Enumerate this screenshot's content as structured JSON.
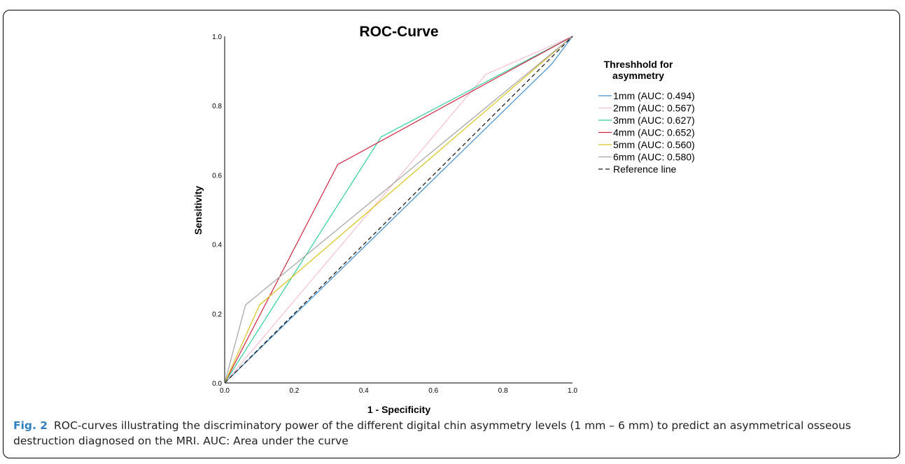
{
  "chart_data": {
    "type": "line",
    "title": "ROC-Curve",
    "xlabel": "1 - Specificity",
    "ylabel": "Sensitivity",
    "xlim": [
      0.0,
      1.0
    ],
    "ylim": [
      0.0,
      1.0
    ],
    "xticks": [
      "0.0",
      "0.2",
      "0.4",
      "0.6",
      "0.8",
      "1.0"
    ],
    "yticks": [
      "0.0",
      "0.2",
      "0.4",
      "0.6",
      "0.8",
      "1.0"
    ],
    "grid": false,
    "legend": {
      "title_line1": "Threshhold for",
      "title_line2": "asymmetry",
      "position": "right"
    },
    "series": [
      {
        "name": "1mm (AUC: 0.494)",
        "color": "#3f8fd0",
        "dash": false,
        "x": [
          0.0,
          0.94,
          1.0
        ],
        "y": [
          0.0,
          0.92,
          1.0
        ]
      },
      {
        "name": "2mm (AUC: 0.567)",
        "color": "#f6bfd2",
        "dash": false,
        "x": [
          0.0,
          0.75,
          1.0
        ],
        "y": [
          0.0,
          0.89,
          1.0
        ]
      },
      {
        "name": "3mm (AUC: 0.627)",
        "color": "#2fcf9e",
        "dash": false,
        "x": [
          0.0,
          0.45,
          1.0
        ],
        "y": [
          0.0,
          0.71,
          1.0
        ]
      },
      {
        "name": "4mm (AUC: 0.652)",
        "color": "#d1263f",
        "dash": false,
        "x": [
          0.0,
          0.325,
          1.0
        ],
        "y": [
          0.0,
          0.63,
          1.0
        ]
      },
      {
        "name": "5mm (AUC: 0.560)",
        "color": "#d9c21e",
        "dash": false,
        "x": [
          0.0,
          0.1,
          1.0
        ],
        "y": [
          0.0,
          0.225,
          1.0
        ]
      },
      {
        "name": "6mm (AUC: 0.580)",
        "color": "#a3a3a3",
        "dash": false,
        "x": [
          0.0,
          0.06,
          1.0
        ],
        "y": [
          0.0,
          0.225,
          1.0
        ]
      },
      {
        "name": "Reference line",
        "color": "#1a1a1a",
        "dash": true,
        "x": [
          0.0,
          1.0
        ],
        "y": [
          0.0,
          1.0
        ]
      }
    ]
  },
  "caption": {
    "label": "Fig. 2",
    "text": "ROC-curves illustrating the discriminatory power of the different digital chin asymmetry levels (1 mm – 6 mm) to predict an asymmetrical osseous destruction diagnosed on the MRI. AUC: Area under the curve"
  }
}
